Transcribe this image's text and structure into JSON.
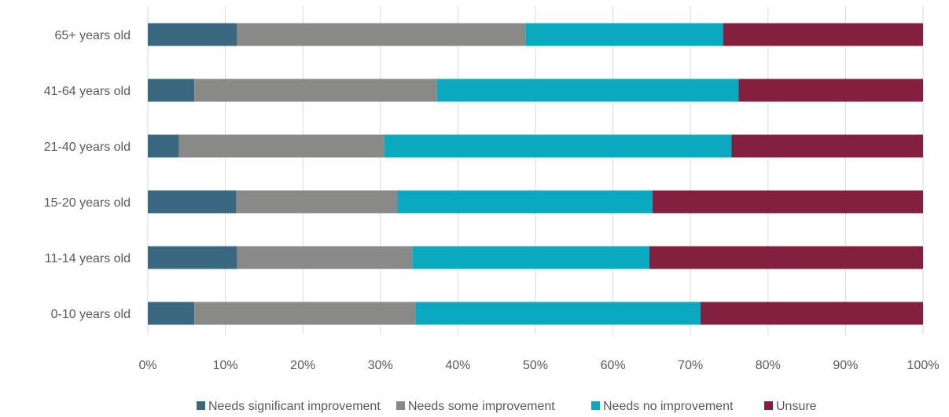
{
  "chart_data": {
    "type": "bar",
    "orientation": "horizontal",
    "stacked": true,
    "title": "",
    "xlabel": "",
    "ylabel": "",
    "xlim": [
      0,
      100
    ],
    "x_ticks": [
      "0%",
      "10%",
      "20%",
      "30%",
      "40%",
      "50%",
      "60%",
      "70%",
      "80%",
      "90%",
      "100%"
    ],
    "grid": "vertical",
    "legend_position": "bottom",
    "categories": [
      "65+ years old",
      "41-64 years old",
      "21-40 years old",
      "15-20 years old",
      "11-14 years old",
      "0-10 years old"
    ],
    "series": [
      {
        "name": "Needs significant improvement",
        "color": "#3a6880",
        "values": [
          11.5,
          6,
          4,
          11.4,
          11.5,
          6
        ]
      },
      {
        "name": "Needs some improvement",
        "color": "#898a88",
        "values": [
          37.2,
          31.3,
          26.5,
          20.8,
          22.6,
          28.5
        ]
      },
      {
        "name": "Needs no improvement",
        "color": "#0ba9c0",
        "values": [
          25.5,
          38.9,
          44.8,
          32.9,
          30.6,
          36.8
        ]
      },
      {
        "name": "Unsure",
        "color": "#84203f",
        "values": [
          25.8,
          23.8,
          24.7,
          34.9,
          35.3,
          28.7
        ]
      }
    ]
  }
}
